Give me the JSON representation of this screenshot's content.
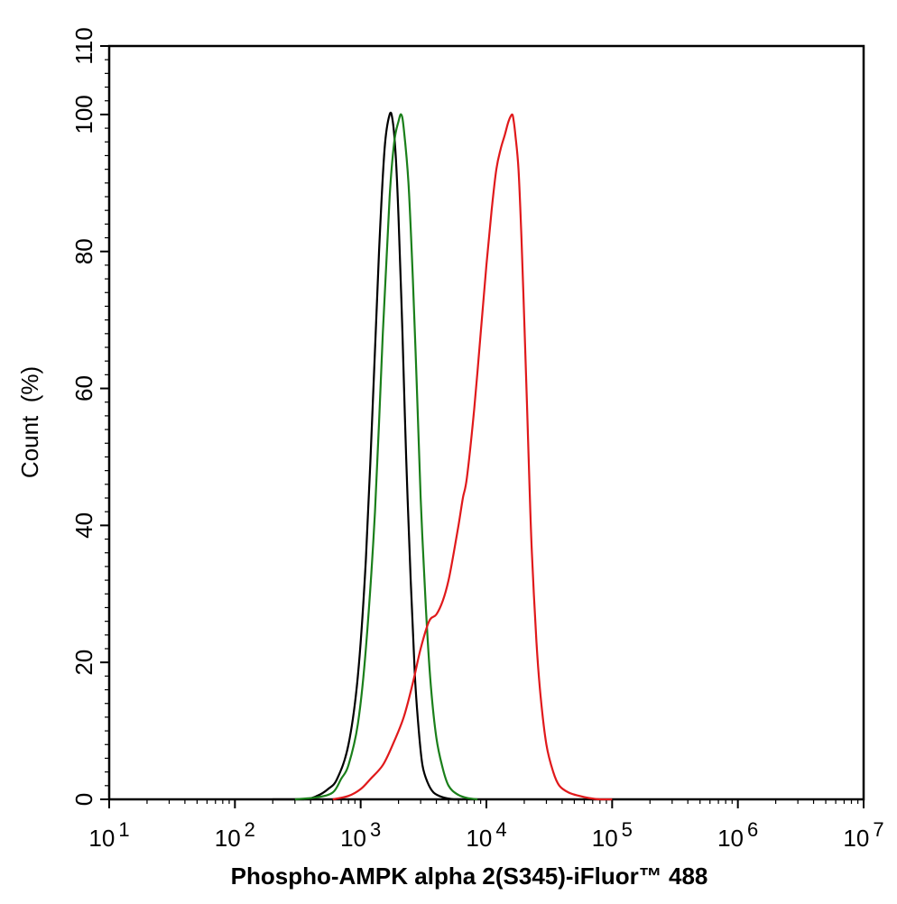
{
  "chart_data": {
    "type": "line",
    "xlabel": "Phospho-AMPK alpha 2(S345)-iFluor™ 488",
    "ylabel": "Count  (%)",
    "x_scale": "log",
    "xlim": [
      10,
      10000000
    ],
    "ylim": [
      0,
      110
    ],
    "x_ticks": [
      {
        "base": "10",
        "exp": "1"
      },
      {
        "base": "10",
        "exp": "2"
      },
      {
        "base": "10",
        "exp": "3"
      },
      {
        "base": "10",
        "exp": "4"
      },
      {
        "base": "10",
        "exp": "5"
      },
      {
        "base": "10",
        "exp": "6"
      },
      {
        "base": "10",
        "exp": "7"
      }
    ],
    "y_ticks": [
      "0",
      "20",
      "40",
      "60",
      "80",
      "100",
      "110"
    ],
    "grid": false,
    "series": [
      {
        "color": "#000000",
        "x": [
          200,
          350,
          450,
          550,
          650,
          800,
          950,
          1100,
          1250,
          1400,
          1550,
          1700,
          1800,
          1900,
          2000,
          2150,
          2300,
          2500,
          2700,
          2900,
          3100,
          3400,
          3800,
          4500,
          5500,
          6500
        ],
        "y": [
          0,
          0,
          0.5,
          1.5,
          3,
          8,
          18,
          35,
          58,
          80,
          95,
          100,
          99,
          94,
          85,
          68,
          50,
          32,
          18,
          10,
          5,
          2.5,
          1,
          0.3,
          0,
          0
        ]
      },
      {
        "color": "#1a7f1a",
        "x": [
          300,
          450,
          600,
          700,
          800,
          950,
          1100,
          1300,
          1500,
          1700,
          1850,
          2000,
          2100,
          2200,
          2400,
          2600,
          2800,
          3000,
          3300,
          3600,
          4000,
          4500,
          5000,
          5800,
          7000,
          8500
        ],
        "y": [
          0,
          0.3,
          1,
          3,
          5,
          11,
          22,
          42,
          68,
          88,
          96,
          99,
          100,
          98,
          90,
          76,
          60,
          44,
          28,
          17,
          9,
          4.5,
          2,
          0.8,
          0.2,
          0
        ]
      },
      {
        "color": "#e0191b",
        "x": [
          600,
          800,
          1000,
          1200,
          1500,
          1800,
          2200,
          2600,
          3000,
          3500,
          4000,
          4500,
          5000,
          5500,
          6000,
          6500,
          7000,
          8000,
          9000,
          10000,
          11000,
          12000,
          13000,
          14000,
          15000,
          16000,
          16500,
          17000,
          18000,
          19000,
          20000,
          21000,
          22000,
          23000,
          25000,
          27000,
          30000,
          34000,
          38000,
          45000,
          55000,
          65000,
          80000,
          100000
        ],
        "y": [
          0,
          0.5,
          1.5,
          3,
          5,
          8,
          12,
          17,
          22,
          26,
          27,
          29,
          32,
          36,
          40,
          44,
          47,
          57,
          68,
          78,
          86,
          92,
          95,
          97,
          99,
          100,
          99,
          97,
          92,
          82,
          70,
          58,
          46,
          36,
          23,
          15,
          8,
          4,
          2,
          1,
          0.5,
          0.2,
          0,
          0
        ]
      }
    ]
  }
}
